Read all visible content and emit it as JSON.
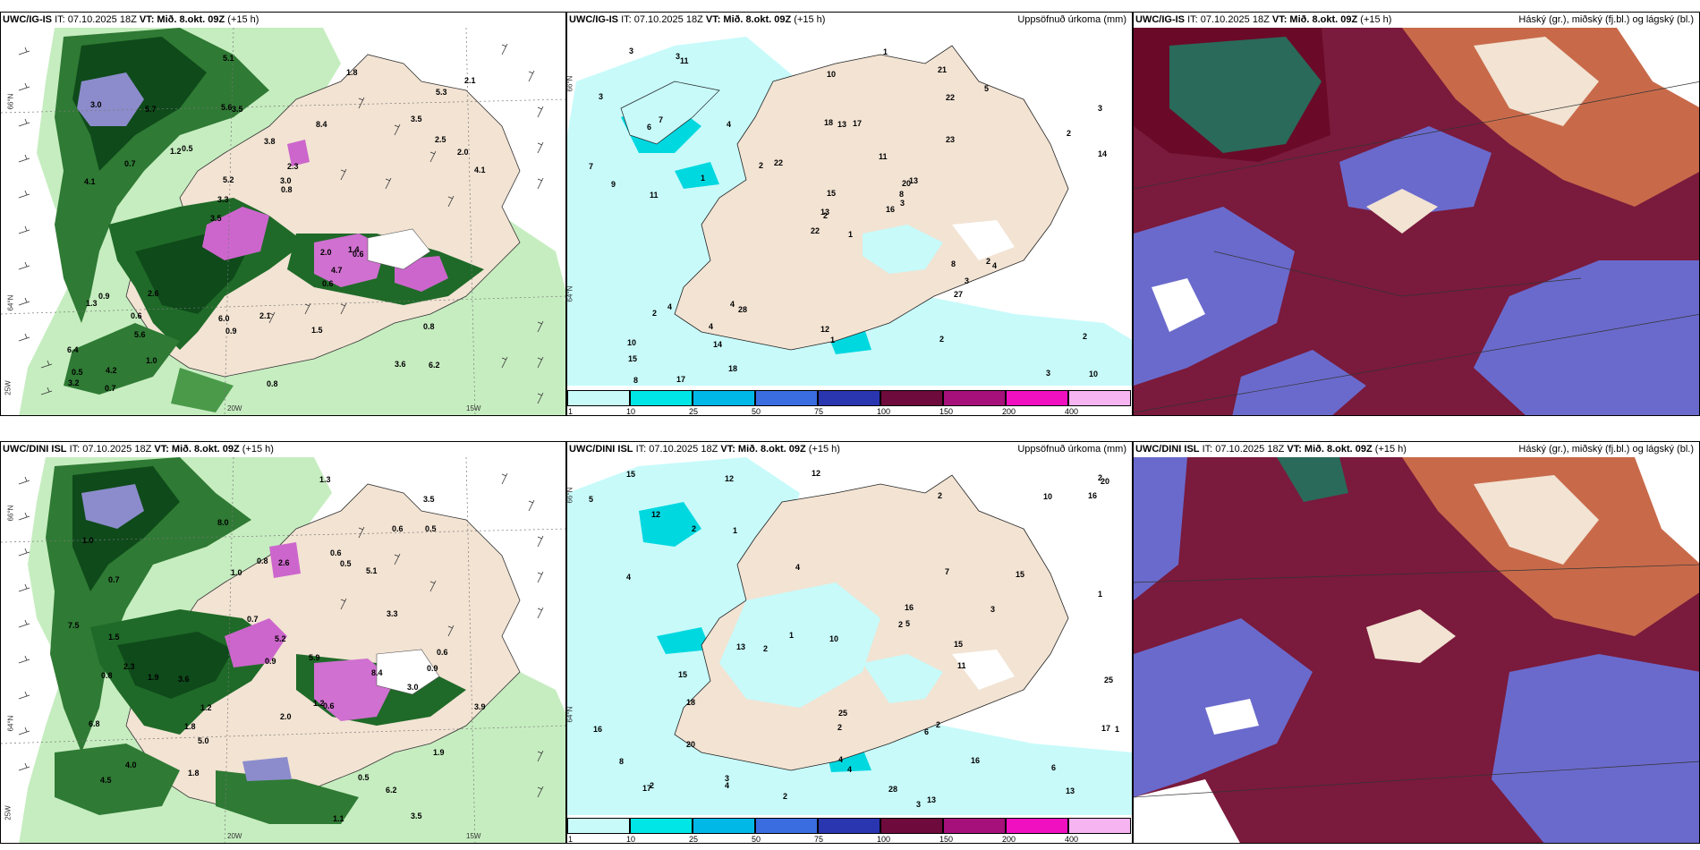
{
  "panels": [
    {
      "title_model": "UWC/IG-IS",
      "title_it": "IT: 07.10.2025 18Z",
      "title_vt": "VT: Mið. 8.okt. 09Z",
      "title_lead": "(+15 h)",
      "right_title": ""
    },
    {
      "title_model": "UWC/IG-IS",
      "title_it": "IT: 07.10.2025 18Z",
      "title_vt": "VT: Mið. 8.okt. 09Z",
      "title_lead": "(+15 h)",
      "right_title": "Uppsöfnuð úrkoma (mm)"
    },
    {
      "title_model": "UWC/IG-IS",
      "title_it": "IT: 07.10.2025 18Z",
      "title_vt": "VT: Mið. 8.okt. 09Z",
      "title_lead": "(+15 h)",
      "right_title": "Háský (gr.), miðský (fj.bl.) og lágský (bl.)"
    },
    {
      "title_model": "UWC/DINI ISL",
      "title_it": "IT: 07.10.2025 18Z",
      "title_vt": "VT: Mið. 8.okt. 09Z",
      "title_lead": "(+15 h)",
      "right_title": ""
    },
    {
      "title_model": "UWC/DINI ISL",
      "title_it": "IT: 07.10.2025 18Z",
      "title_vt": "VT: Mið. 8.okt. 09Z",
      "title_lead": "(+15 h)",
      "right_title": "Uppsöfnuð úrkoma (mm)"
    },
    {
      "title_model": "UWC/DINI ISL",
      "title_it": "IT: 07.10.2025 18Z",
      "title_vt": "VT: Mið. 8.okt. 09Z",
      "title_lead": "(+15 h)",
      "right_title": "Háský (gr.), miðský (fj.bl.) og lágský (bl.)"
    }
  ],
  "axis_labels": {
    "lat_66": "66°N",
    "lat_64": "64°N",
    "lon_20": "20W",
    "lon_15": "15W",
    "lon_25": "25W"
  },
  "colorbar": {
    "ticks": [
      "1",
      "10",
      "25",
      "50",
      "75",
      "100",
      "150",
      "200",
      "400"
    ],
    "colors": [
      "#c8fafa",
      "#00e5e5",
      "#00b8e8",
      "#3a6de0",
      "#2a36b0",
      "#6e0a3c",
      "#a6107a",
      "#f010c0",
      "#f6b4f0"
    ]
  },
  "precip_labels_top": [
    "1",
    "6",
    "2",
    "10",
    "20",
    "28",
    "21",
    "17",
    "22",
    "16",
    "11",
    "10",
    "11",
    "3",
    "22",
    "23",
    "17",
    "18",
    "11",
    "4",
    "22",
    "15",
    "14",
    "13",
    "13",
    "4",
    "7",
    "10",
    "9",
    "8",
    "14",
    "13",
    "12",
    "15",
    "4",
    "5",
    "4",
    "3",
    "2",
    "2",
    "1",
    "2",
    "1",
    "27",
    "18",
    "7",
    "8",
    "8",
    "1",
    "3",
    "2",
    "2",
    "3",
    "3",
    "2",
    "4",
    "3",
    "3"
  ],
  "precip_labels_bottom": [
    "2",
    "3",
    "3",
    "16",
    "12",
    "12",
    "13",
    "13",
    "12",
    "4",
    "10",
    "4",
    "1",
    "2",
    "2",
    "2",
    "4",
    "4",
    "2",
    "5",
    "6",
    "20",
    "16",
    "17",
    "15",
    "15",
    "16",
    "18",
    "15",
    "11",
    "10",
    "13",
    "25",
    "16",
    "20",
    "15",
    "17",
    "8",
    "7",
    "6",
    "5",
    "3",
    "1",
    "2",
    "1",
    "2",
    "25",
    "28",
    "2",
    "4",
    "2",
    "1"
  ],
  "wind_labels_top": [
    "6.2",
    "4.1",
    "5.3",
    "3.5",
    "8.4",
    "4.2",
    "5.6",
    "3.8",
    "0.9",
    "0.5",
    "6.4",
    "5.6",
    "3.5",
    "2.3",
    "0.6",
    "3.0",
    "5.1",
    "4.1",
    "2.0",
    "2.5",
    "3.3",
    "6.0",
    "5.2",
    "5.7",
    "1.8",
    "2.6",
    "3.6",
    "0.8",
    "1.4",
    "0.8",
    "1.2",
    "0.7",
    "0.6",
    "1.0",
    "2.0",
    "3.0",
    "0.5",
    "0.9",
    "0.8",
    "1.3",
    "3.5",
    "2.1",
    "4.7",
    "1.5",
    "0.6",
    "0.7",
    "3.2",
    "2.1"
  ],
  "wind_labels_bottom": [
    "3.5",
    "2.3",
    "1.2",
    "1.0",
    "1.9",
    "0.7",
    "4.0",
    "3.6",
    "5.1",
    "0.8",
    "0.5",
    "6.2",
    "5.0",
    "8.0",
    "5.9",
    "6.8",
    "8.4",
    "5.2",
    "7.5",
    "4.5",
    "3.5",
    "2.6",
    "3.3",
    "3.9",
    "0.6",
    "1.5",
    "1.9",
    "0.9",
    "0.7",
    "0.5",
    "0.6",
    "0.8",
    "1.8",
    "0.6",
    "1.0",
    "3.0",
    "0.9",
    "0.5",
    "0.6",
    "1.1",
    "1.2",
    "2.0",
    "1.8",
    "1.3"
  ]
}
